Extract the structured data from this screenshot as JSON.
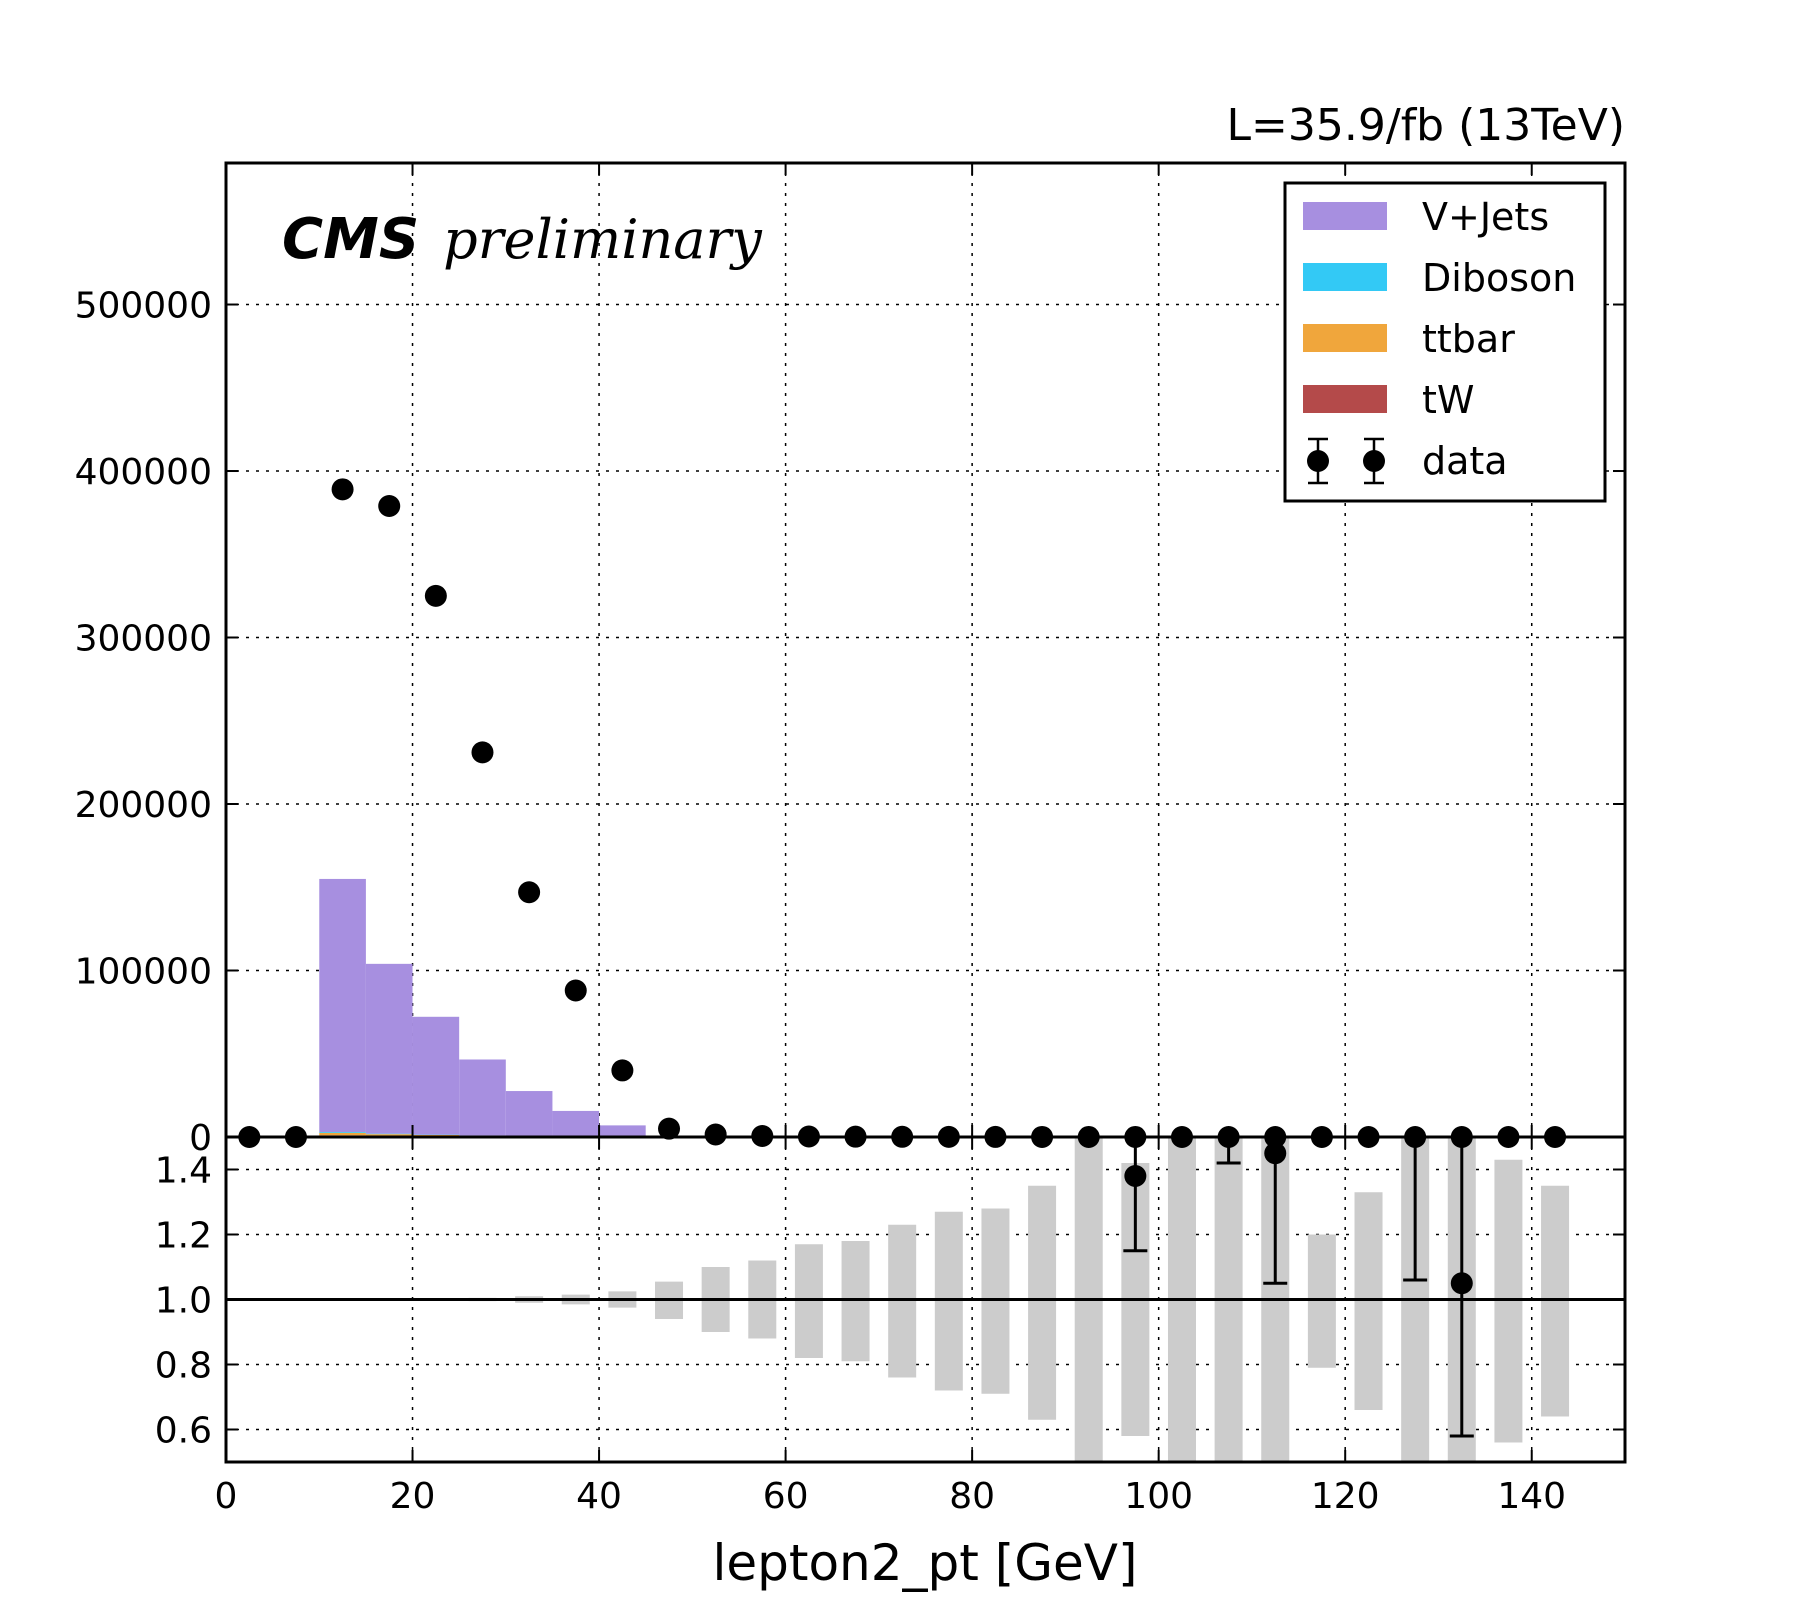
{
  "chart_data": {
    "type": "bar",
    "title": "",
    "lumi_label": "L=35.9/fb (13TeV)",
    "experiment_label": "CMS",
    "status_label": "preliminary",
    "xlabel": "lepton2_pt [GeV]",
    "xlim": [
      0,
      150
    ],
    "x_ticks": [
      0,
      20,
      40,
      60,
      80,
      100,
      120,
      140
    ],
    "grid": true,
    "legend_position": "top-right",
    "bin_edges": [
      0,
      5,
      10,
      15,
      20,
      25,
      30,
      35,
      40,
      45,
      50,
      55,
      60,
      65,
      70,
      75,
      80,
      85,
      90,
      95,
      100,
      105,
      110,
      115,
      120,
      125,
      130,
      135,
      140,
      145
    ],
    "main_panel": {
      "ylim": [
        0,
        585000
      ],
      "y_ticks": [
        0,
        100000,
        200000,
        300000,
        400000,
        500000
      ],
      "stack": [
        {
          "name": "tW",
          "color": "#b44a4a",
          "values": [
            0,
            0,
            1000,
            700,
            500,
            300,
            200,
            100,
            50,
            20,
            10,
            5,
            3,
            2,
            1,
            1,
            1,
            0,
            0,
            0,
            0,
            0,
            0,
            0,
            0,
            0,
            0,
            0,
            0
          ]
        },
        {
          "name": "ttbar",
          "color": "#f0a63c",
          "values": [
            0,
            0,
            1500,
            1000,
            700,
            500,
            300,
            200,
            100,
            40,
            20,
            10,
            5,
            3,
            2,
            1,
            1,
            0,
            0,
            0,
            0,
            0,
            0,
            0,
            0,
            0,
            0,
            0,
            0
          ]
        },
        {
          "name": "Diboson",
          "color": "#33c9f5",
          "values": [
            0,
            0,
            500,
            300,
            200,
            150,
            100,
            60,
            30,
            10,
            5,
            3,
            2,
            1,
            1,
            0,
            0,
            0,
            0,
            0,
            0,
            0,
            0,
            0,
            0,
            0,
            0,
            0,
            0
          ]
        },
        {
          "name": "V+Jets",
          "color": "#a78fe0",
          "values": [
            0,
            0,
            152000,
            102000,
            70800,
            45600,
            27000,
            15300,
            6800,
            600,
            500,
            400,
            300,
            200,
            150,
            100,
            80,
            60,
            40,
            30,
            20,
            15,
            12,
            10,
            8,
            6,
            5,
            4,
            3
          ]
        }
      ],
      "data": {
        "name": "data",
        "x": [
          2.5,
          7.5,
          12.5,
          17.5,
          22.5,
          27.5,
          32.5,
          37.5,
          42.5,
          47.5,
          52.5,
          57.5,
          62.5,
          67.5,
          72.5,
          77.5,
          82.5,
          87.5,
          92.5,
          97.5,
          102.5,
          107.5,
          112.5,
          117.5,
          122.5,
          127.5,
          132.5,
          137.5,
          142.5
        ],
        "values": [
          0,
          0,
          389000,
          379000,
          325000,
          231000,
          147000,
          88000,
          40000,
          5000,
          1500,
          600,
          300,
          200,
          120,
          80,
          50,
          30,
          20,
          15,
          10,
          8,
          6,
          4,
          3,
          2,
          2,
          1,
          1
        ]
      }
    },
    "ratio_panel": {
      "ylim": [
        0.5,
        1.5
      ],
      "y_ticks": [
        0.6,
        0.8,
        1.0,
        1.2,
        1.4
      ],
      "y_tick_labels": [
        "0.6",
        "0.8",
        "1.0",
        "1.2",
        "1.4"
      ],
      "reference_line": 1.0,
      "uncertainty_band": {
        "x": [
          2.5,
          7.5,
          12.5,
          17.5,
          22.5,
          27.5,
          32.5,
          37.5,
          42.5,
          47.5,
          52.5,
          57.5,
          62.5,
          67.5,
          72.5,
          77.5,
          82.5,
          87.5,
          92.5,
          97.5,
          102.5,
          107.5,
          112.5,
          117.5,
          122.5,
          127.5,
          132.5,
          137.5,
          142.5
        ],
        "low": [
          1,
          1,
          1,
          1,
          0.998,
          0.995,
          0.99,
          0.985,
          0.975,
          0.94,
          0.9,
          0.88,
          0.82,
          0.81,
          0.76,
          0.72,
          0.71,
          0.63,
          0.4,
          0.58,
          0.4,
          0.4,
          0.4,
          0.79,
          0.66,
          0.4,
          0.4,
          0.56,
          0.64
        ],
        "high": [
          1,
          1,
          1,
          1,
          1.002,
          1.005,
          1.01,
          1.015,
          1.025,
          1.055,
          1.1,
          1.12,
          1.17,
          1.18,
          1.23,
          1.27,
          1.28,
          1.35,
          1.6,
          1.42,
          1.6,
          1.6,
          1.6,
          1.2,
          1.33,
          1.6,
          1.6,
          1.43,
          1.35
        ]
      },
      "points": [
        {
          "x": 97.5,
          "y": 1.38,
          "err_low": 1.15,
          "err_high": 1.6
        },
        {
          "x": 107.5,
          "y": 1.6,
          "err_low": 1.42,
          "err_high": 1.6
        },
        {
          "x": 112.5,
          "y": 1.45,
          "err_low": 1.05,
          "err_high": 1.6
        },
        {
          "x": 127.5,
          "y": 1.6,
          "err_low": 1.06,
          "err_high": 1.6
        },
        {
          "x": 132.5,
          "y": 1.05,
          "err_low": 0.58,
          "err_high": 1.6
        }
      ]
    }
  }
}
